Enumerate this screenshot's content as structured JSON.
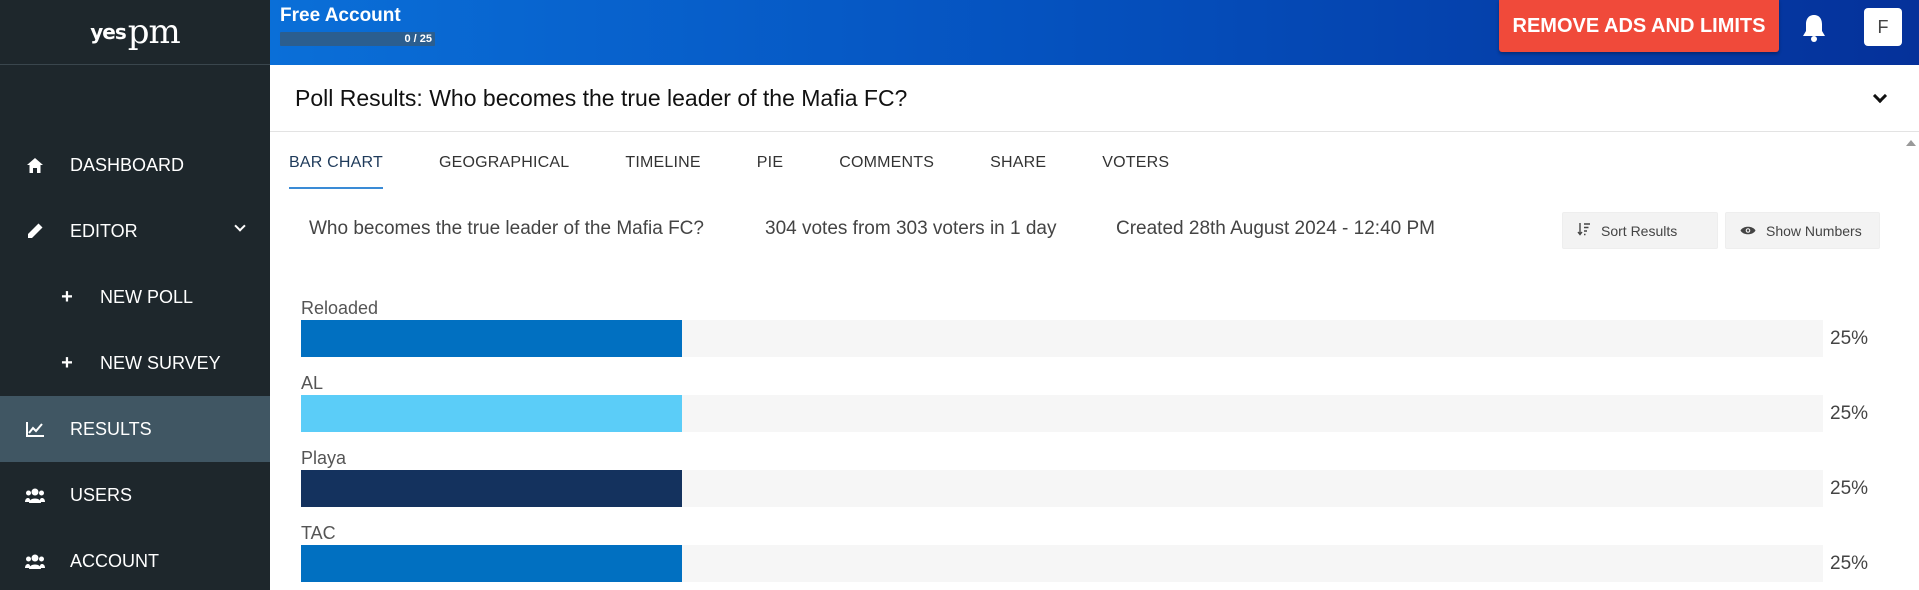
{
  "app": {
    "logo_text": "pm",
    "logo_mark": "yes"
  },
  "sidebar": {
    "items": [
      {
        "label": "DASHBOARD",
        "icon": "home-icon"
      },
      {
        "label": "EDITOR",
        "icon": "pencil-icon",
        "expanded": true
      },
      {
        "label": "NEW POLL",
        "icon": "plus-icon"
      },
      {
        "label": "NEW SURVEY",
        "icon": "plus-icon"
      },
      {
        "label": "RESULTS",
        "icon": "chart-line-icon",
        "active": true
      },
      {
        "label": "USERS",
        "icon": "users-icon"
      },
      {
        "label": "ACCOUNT",
        "icon": "users-icon"
      }
    ]
  },
  "topbar": {
    "account_title": "Free Account",
    "quota_text": "0 / 25",
    "quota_fraction": 0,
    "upgrade_label": "REMOVE ADS AND LIMITS",
    "avatar_initial": "F"
  },
  "poll": {
    "title": "Poll Results: Who becomes the true leader of the Mafia FC?",
    "question": "Who becomes the true leader of the Mafia FC?",
    "votes_text": "304 votes from 303 voters in 1 day",
    "created_text": "Created 28th August 2024 - 12:40 PM"
  },
  "tabs": [
    {
      "label": "BAR CHART",
      "active": true
    },
    {
      "label": "GEOGRAPHICAL"
    },
    {
      "label": "TIMELINE"
    },
    {
      "label": "PIE"
    },
    {
      "label": "COMMENTS"
    },
    {
      "label": "SHARE"
    },
    {
      "label": "VOTERS"
    }
  ],
  "controls": {
    "sort_label": "Sort Results",
    "numbers_label": "Show Numbers"
  },
  "chart_data": {
    "type": "bar",
    "orientation": "horizontal",
    "categories": [
      "Reloaded",
      "AL",
      "Playa",
      "TAC"
    ],
    "values": [
      25,
      25,
      25,
      25
    ],
    "value_labels": [
      "25%",
      "25%",
      "25%",
      "25%"
    ],
    "xlim": [
      0,
      100
    ],
    "colors": [
      "#0170c1",
      "#5bcdf8",
      "#14325e",
      "#0170c1"
    ],
    "track_color": "#f6f6f6"
  }
}
